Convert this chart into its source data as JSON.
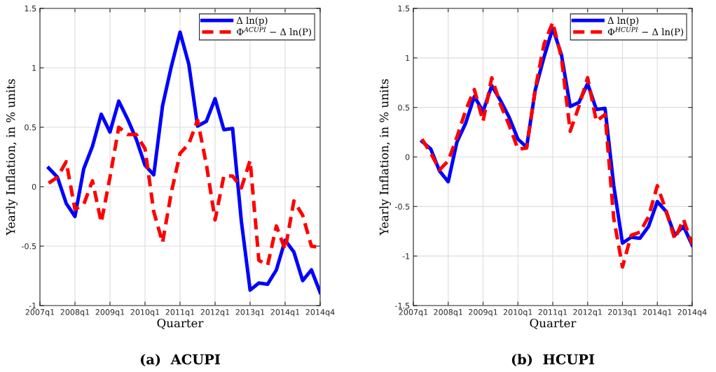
{
  "chart_data": [
    {
      "type": "line",
      "xlabel": "Quarter",
      "ylabel": "Yearly Inflation, in % units",
      "annotations": [
        "(a)  ACUPI"
      ],
      "categories": [
        "2007q1",
        null,
        null,
        null,
        "2008q1",
        null,
        null,
        null,
        "2009q1",
        null,
        null,
        null,
        "2010q1",
        null,
        null,
        null,
        "2011q1",
        null,
        null,
        null,
        "2012q1",
        null,
        null,
        null,
        "2013q1",
        null,
        null,
        null,
        "2014q1",
        null,
        null,
        null,
        "2014q4"
      ],
      "series": [
        {
          "name": "Δ ln(p)",
          "color": "#0000ff",
          "line_style": "solid",
          "values": [
            null,
            0.157,
            0.08,
            -0.14,
            -0.25,
            0.15,
            0.34,
            0.61,
            0.46,
            0.72,
            0.57,
            0.4,
            0.18,
            0.1,
            0.68,
            1.01,
            1.3,
            1.03,
            0.51,
            0.55,
            0.74,
            0.48,
            0.49,
            -0.29,
            -0.87,
            -0.81,
            -0.82,
            -0.7,
            -0.45,
            -0.55,
            -0.79,
            -0.7,
            -0.89
          ]
        },
        {
          "name": "Φ$^{ACUPI}$ − Δ ln(P)",
          "color": "#ff0000",
          "line_style": "dashed",
          "values": [
            null,
            0.03,
            0.08,
            0.21,
            -0.19,
            -0.15,
            0.05,
            -0.3,
            0.08,
            0.5,
            0.44,
            0.44,
            0.32,
            -0.21,
            -0.47,
            -0.05,
            0.28,
            0.36,
            0.56,
            0.19,
            -0.28,
            0.09,
            0.09,
            -0.01,
            0.22,
            -0.62,
            -0.66,
            -0.33,
            -0.53,
            -0.12,
            -0.24,
            -0.5,
            -0.51
          ]
        }
      ],
      "ylim": [
        -1,
        1.5
      ],
      "yticks": [
        -1,
        -0.5,
        0,
        0.5,
        1,
        1.5
      ],
      "grid": true,
      "legend": "top right"
    },
    {
      "type": "line",
      "xlabel": "Quarter",
      "ylabel": "Yearly Inflation, in % units",
      "annotations": [
        "(b)  HCUPI"
      ],
      "categories": [
        "2007q1",
        null,
        null,
        null,
        "2008q1",
        null,
        null,
        null,
        "2009q1",
        null,
        null,
        null,
        "2010q1",
        null,
        null,
        null,
        "2011q1",
        null,
        null,
        null,
        "2012q1",
        null,
        null,
        null,
        "2013q1",
        null,
        null,
        null,
        "2014q1",
        null,
        null,
        null,
        "2014q4"
      ],
      "series": [
        {
          "name": "Δ ln(p)",
          "color": "#0000ff",
          "line_style": "solid",
          "values": [
            null,
            0.157,
            0.08,
            -0.14,
            -0.25,
            0.15,
            0.34,
            0.61,
            0.46,
            0.72,
            0.57,
            0.4,
            0.18,
            0.1,
            0.68,
            1.01,
            1.3,
            1.03,
            0.51,
            0.55,
            0.74,
            0.48,
            0.49,
            -0.29,
            -0.87,
            -0.81,
            -0.82,
            -0.7,
            -0.45,
            -0.55,
            -0.79,
            -0.7,
            -0.89
          ]
        },
        {
          "name": "Φ$^{HCUPI}$ − Δ ln(P)",
          "color": "#ff0000",
          "line_style": "dashed",
          "values": [
            null,
            0.18,
            0.04,
            -0.13,
            -0.04,
            0.2,
            0.47,
            0.68,
            0.36,
            0.8,
            0.53,
            0.32,
            0.08,
            0.09,
            0.69,
            1.14,
            1.36,
            1.0,
            0.26,
            0.51,
            0.8,
            0.36,
            0.43,
            -0.62,
            -1.11,
            -0.79,
            -0.76,
            -0.6,
            -0.29,
            -0.54,
            -0.83,
            -0.63,
            -0.88
          ]
        }
      ],
      "ylim": [
        -1.5,
        1.5
      ],
      "yticks": [
        -1.5,
        -1,
        -0.5,
        0,
        0.5,
        1,
        1.5
      ],
      "grid": true,
      "legend": "top right"
    }
  ]
}
